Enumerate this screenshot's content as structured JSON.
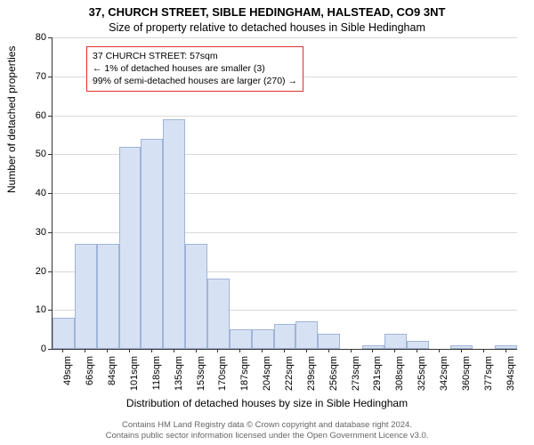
{
  "titles": {
    "line1": "37, CHURCH STREET, SIBLE HEDINGHAM, HALSTEAD, CO9 3NT",
    "line2": "Size of property relative to detached houses in Sible Hedingham"
  },
  "axes": {
    "ylabel": "Number of detached properties",
    "xlabel": "Distribution of detached houses by size in Sible Hedingham",
    "ylim": [
      0,
      80
    ],
    "ytick_step": 10,
    "yticks": [
      0,
      10,
      20,
      30,
      40,
      50,
      60,
      70,
      80
    ]
  },
  "chart": {
    "type": "histogram",
    "bar_fill": "#d6e1f3",
    "bar_border": "#9fb4d7",
    "grid_color": "#d9d9d9",
    "background_color": "#ffffff",
    "axis_color": "#333333",
    "categories": [
      "49sqm",
      "66sqm",
      "84sqm",
      "101sqm",
      "118sqm",
      "135sqm",
      "153sqm",
      "170sqm",
      "187sqm",
      "204sqm",
      "222sqm",
      "239sqm",
      "256sqm",
      "273sqm",
      "291sqm",
      "308sqm",
      "325sqm",
      "342sqm",
      "360sqm",
      "377sqm",
      "394sqm"
    ],
    "values": [
      8,
      27,
      27,
      52,
      54,
      59,
      27,
      18,
      5,
      5,
      6.5,
      7,
      4,
      0,
      1,
      4,
      2,
      0,
      1,
      0,
      1
    ]
  },
  "info_box": {
    "border_color": "#e03030",
    "lines": [
      "37 CHURCH STREET: 57sqm",
      "← 1% of detached houses are smaller (3)",
      "99% of semi-detached houses are larger (270) →"
    ]
  },
  "footer": {
    "line1": "Contains HM Land Registry data © Crown copyright and database right 2024.",
    "line2": "Contains public sector information licensed under the Open Government Licence v3.0."
  },
  "fonts": {
    "title_fontsize": 13,
    "subtitle_fontsize": 12.5,
    "axis_label_fontsize": 12,
    "tick_fontsize": 11,
    "info_fontsize": 10.5,
    "footer_fontsize": 9.5
  }
}
